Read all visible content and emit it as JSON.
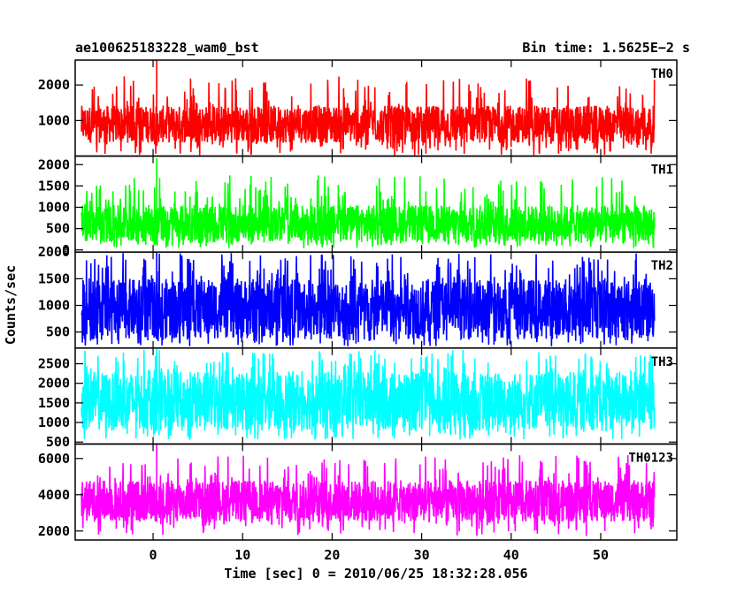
{
  "chart_data": {
    "type": "line",
    "title_left": "ae100625183228_wam0_bst",
    "title_right": "Bin time: 1.5625E−2 s",
    "xlabel": "Time [sec] 0 = 2010/06/25 18:32:28.056",
    "ylabel": "Counts/sec",
    "xlim": [
      -8.7,
      58.5
    ],
    "x_ticks": [
      0,
      10,
      20,
      30,
      40,
      50
    ],
    "x_start": -8,
    "x_end": 56,
    "bin_time": 0.015625,
    "grid": false,
    "panels": [
      {
        "name": "TH0",
        "color": "#ff0000",
        "ylim": [
          0,
          2700
        ],
        "y_ticks": [
          1000,
          2000
        ],
        "typical_range": [
          370,
          1420
        ],
        "extreme_range": [
          20,
          2250
        ],
        "peak": 2700
      },
      {
        "name": "TH1",
        "color": "#00ff00",
        "ylim": [
          -50,
          2200
        ],
        "y_ticks": [
          0,
          500,
          1000,
          1500,
          2000
        ],
        "typical_range": [
          180,
          1050
        ],
        "extreme_range": [
          40,
          1750
        ],
        "peak": 2150
      },
      {
        "name": "TH2",
        "color": "#0000ff",
        "ylim": [
          200,
          2000
        ],
        "y_ticks": [
          500,
          1000,
          1500,
          2000
        ],
        "typical_range": [
          370,
          1500
        ],
        "extreme_range": [
          230,
          1990
        ],
        "peak": 2000
      },
      {
        "name": "TH3",
        "color": "#00ffff",
        "ylim": [
          450,
          2900
        ],
        "y_ticks": [
          500,
          1000,
          1500,
          2000,
          2500
        ],
        "typical_range": [
          800,
          2300
        ],
        "extreme_range": [
          560,
          2860
        ],
        "peak": 2900
      },
      {
        "name": "TH0123",
        "color": "#ff00ff",
        "ylim": [
          1500,
          6800
        ],
        "y_ticks": [
          2000,
          4000,
          6000
        ],
        "typical_range": [
          2500,
          4800
        ],
        "extreme_range": [
          1700,
          6200
        ],
        "peak": 6800
      }
    ]
  }
}
